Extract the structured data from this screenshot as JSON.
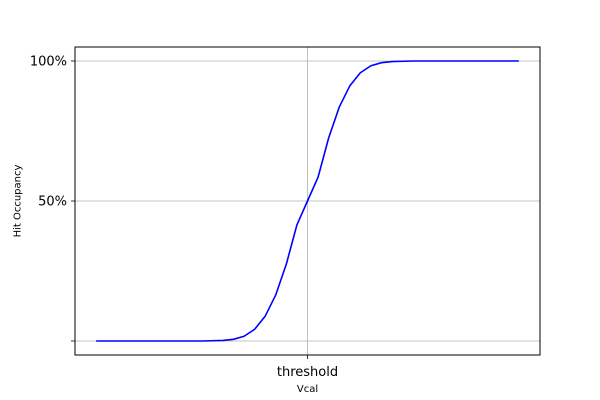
{
  "chart_data": {
    "type": "line",
    "xlabel": "Vcal",
    "ylabel": "Hit Occupancy",
    "x_ticks": [
      {
        "value": 0,
        "label": "threshold"
      }
    ],
    "y_ticks": [
      {
        "value": 0,
        "label": ""
      },
      {
        "value": 50,
        "label": "50%"
      },
      {
        "value": 100,
        "label": "100%"
      }
    ],
    "xlim": [
      -5.5,
      5.5
    ],
    "ylim": [
      -5,
      105
    ],
    "grid": true,
    "series": [
      {
        "color": "#0000ff",
        "x": [
          -5.0,
          -4.5,
          -4.0,
          -3.5,
          -3.0,
          -2.5,
          -2.0,
          -1.75,
          -1.5,
          -1.25,
          -1.0,
          -0.75,
          -0.5,
          -0.25,
          0.0,
          0.25,
          0.5,
          0.75,
          1.0,
          1.25,
          1.5,
          1.75,
          2.0,
          2.5,
          3.0,
          3.5,
          4.0,
          4.5,
          5.0
        ],
        "y": [
          0.0,
          0.0,
          0.0,
          0.0,
          0.0,
          0.0,
          0.2,
          0.6,
          1.7,
          4.2,
          8.9,
          16.5,
          27.5,
          41.5,
          50.0,
          58.5,
          72.5,
          83.5,
          91.1,
          95.8,
          98.3,
          99.4,
          99.8,
          100.0,
          100.0,
          100.0,
          100.0,
          100.0,
          100.0
        ]
      }
    ]
  }
}
